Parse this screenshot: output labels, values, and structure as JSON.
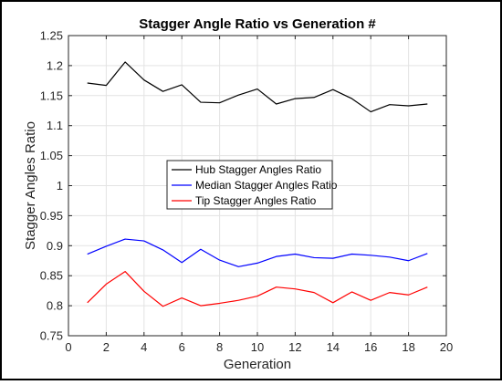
{
  "chart_data": {
    "type": "line",
    "title": "Stagger Angle Ratio vs Generation #",
    "xlabel": "Generation",
    "ylabel": "Stagger Angles Ratio",
    "xlim": [
      0,
      20
    ],
    "ylim": [
      0.75,
      1.25
    ],
    "xticks": [
      0,
      2,
      4,
      6,
      8,
      10,
      12,
      14,
      16,
      18,
      20
    ],
    "yticks": [
      0.75,
      0.8,
      0.85,
      0.9,
      0.95,
      1,
      1.05,
      1.1,
      1.15,
      1.2,
      1.25
    ],
    "xtick_labels": [
      "0",
      "2",
      "4",
      "6",
      "8",
      "10",
      "12",
      "14",
      "16",
      "18",
      "20"
    ],
    "ytick_labels": [
      "0.75",
      "0.8",
      "0.85",
      "0.9",
      "0.95",
      "1",
      "1.05",
      "1.1",
      "1.15",
      "1.2",
      "1.25"
    ],
    "grid": true,
    "legend_position": "center-left",
    "x": [
      1,
      2,
      3,
      4,
      5,
      6,
      7,
      8,
      9,
      10,
      11,
      12,
      13,
      14,
      15,
      16,
      17,
      18,
      19
    ],
    "series": [
      {
        "name": "Hub Stagger Angles Ratio",
        "color": "#000000",
        "values": [
          1.171,
          1.167,
          1.206,
          1.176,
          1.157,
          1.168,
          1.139,
          1.138,
          1.151,
          1.161,
          1.136,
          1.145,
          1.147,
          1.16,
          1.145,
          1.123,
          1.135,
          1.133,
          1.136
        ]
      },
      {
        "name": "Median Stagger Angles Ratio",
        "color": "#0000ff",
        "values": [
          0.886,
          0.899,
          0.911,
          0.908,
          0.893,
          0.872,
          0.894,
          0.876,
          0.865,
          0.871,
          0.882,
          0.886,
          0.88,
          0.879,
          0.886,
          0.884,
          0.881,
          0.875,
          0.887
        ]
      },
      {
        "name": "Tip Stagger Angles Ratio",
        "color": "#ff0000",
        "values": [
          0.805,
          0.836,
          0.857,
          0.824,
          0.799,
          0.813,
          0.8,
          0.804,
          0.809,
          0.816,
          0.831,
          0.828,
          0.822,
          0.805,
          0.823,
          0.809,
          0.822,
          0.818,
          0.831
        ]
      }
    ]
  }
}
